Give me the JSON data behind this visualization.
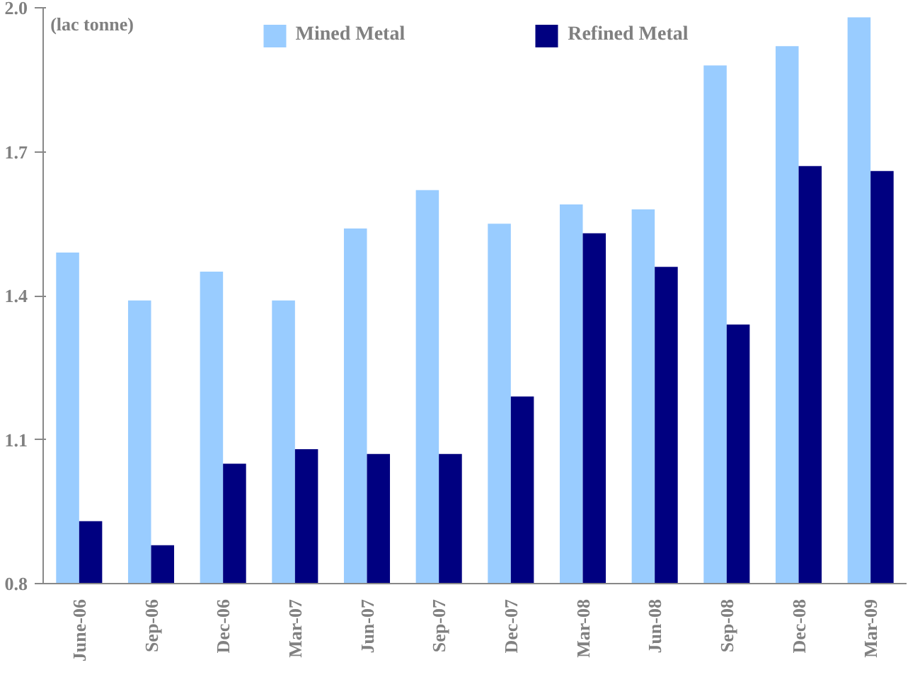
{
  "chart_data": {
    "type": "bar",
    "ylabel": "(lac tonne)",
    "categories": [
      "June-06",
      "Sep-06",
      "Dec-06",
      "Mar-07",
      "Jun-07",
      "Sep-07",
      "Dec-07",
      "Mar-08",
      "Jun-08",
      "Sep-08",
      "Dec-08",
      "Mar-09"
    ],
    "series": [
      {
        "name": "Mined Metal",
        "color": "#99ccff",
        "values": [
          1.49,
          1.39,
          1.45,
          1.39,
          1.54,
          1.62,
          1.55,
          1.59,
          1.58,
          1.88,
          1.92,
          1.98
        ]
      },
      {
        "name": "Refined Metal",
        "color": "#000080",
        "values": [
          0.93,
          0.88,
          1.05,
          1.08,
          1.07,
          1.07,
          1.19,
          1.53,
          1.46,
          1.34,
          1.67,
          1.66
        ]
      }
    ],
    "ylim": [
      0.8,
      2.0
    ],
    "yticks": [
      {
        "value": 0.8,
        "label": "0.8"
      },
      {
        "value": 1.1,
        "label": "1.1"
      },
      {
        "value": 1.4,
        "label": "1.4"
      },
      {
        "value": 1.7,
        "label": "1.7"
      },
      {
        "value": 2.0,
        "label": "2.0"
      }
    ],
    "grid": false,
    "legend": "top"
  }
}
